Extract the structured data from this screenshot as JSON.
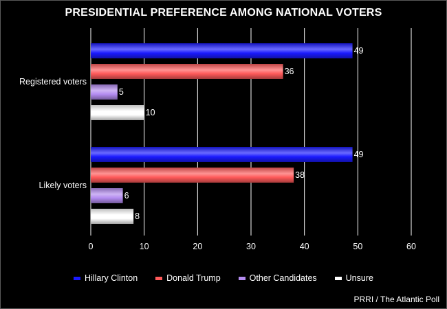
{
  "chart_data": {
    "type": "bar",
    "orientation": "horizontal",
    "title": "PRESIDENTIAL PREFERENCE AMONG NATIONAL VOTERS",
    "categories": [
      "Registered voters",
      "Likely voters"
    ],
    "series": [
      {
        "name": "Hillary Clinton",
        "values": [
          49,
          49
        ],
        "color": "#1a1aff"
      },
      {
        "name": "Donald Trump",
        "values": [
          36,
          38
        ],
        "color": "#ff5a5a"
      },
      {
        "name": "Other Candidates",
        "values": [
          5,
          6
        ],
        "color": "#b48cf0"
      },
      {
        "name": "Unsure",
        "values": [
          10,
          8
        ],
        "color": "#ffffff"
      }
    ],
    "xlim": [
      0,
      60
    ],
    "xticks": [
      0,
      10,
      20,
      30,
      40,
      50,
      60
    ],
    "grid": true,
    "legend_position": "bottom",
    "source": "PRRI / The Atlantic Poll"
  }
}
